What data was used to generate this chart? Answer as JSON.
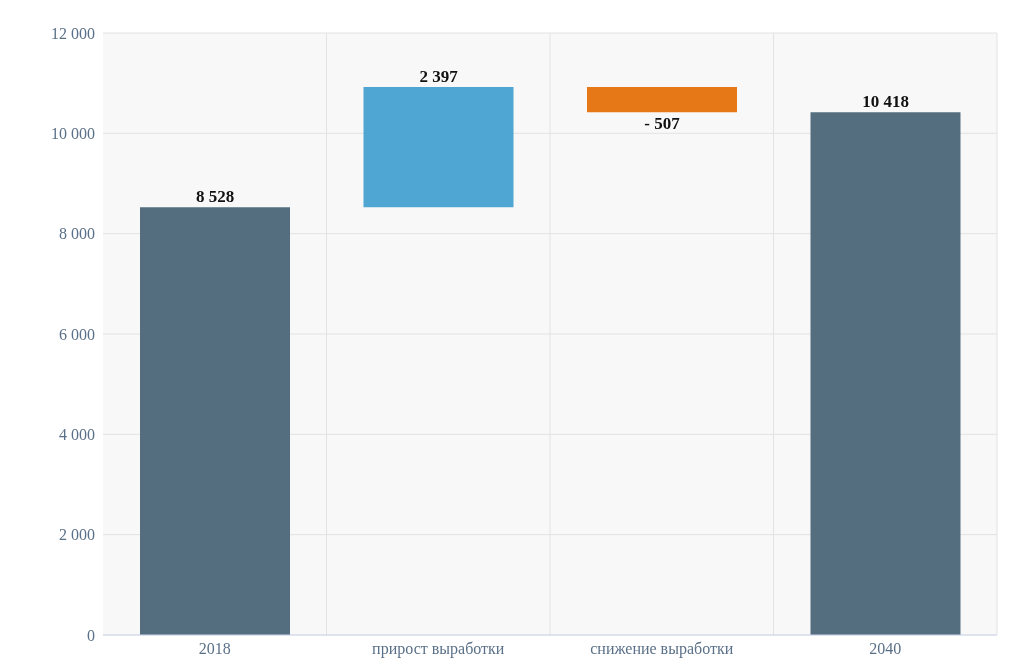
{
  "chart_data": {
    "type": "bar",
    "categories": [
      "2018",
      "прирост выработки",
      "снижение выработки",
      "2040"
    ],
    "values": [
      8528,
      2397,
      -507,
      10418
    ],
    "base": [
      0,
      8528,
      10925,
      0
    ],
    "colors": [
      "#546e80",
      "#4fa6d3",
      "#e67817",
      "#546e80"
    ],
    "value_labels": [
      "8 528",
      "2 397",
      "- 507",
      "10 418"
    ],
    "ylim": [
      0,
      12000
    ],
    "yticks": [
      {
        "value": 0,
        "label": "0"
      },
      {
        "value": 2000,
        "label": "2 000"
      },
      {
        "value": 4000,
        "label": "4 000"
      },
      {
        "value": 6000,
        "label": "6 000"
      },
      {
        "value": 8000,
        "label": "8 000"
      },
      {
        "value": 10000,
        "label": "10 000"
      },
      {
        "value": 12000,
        "label": "12 000"
      }
    ],
    "grid": true
  }
}
